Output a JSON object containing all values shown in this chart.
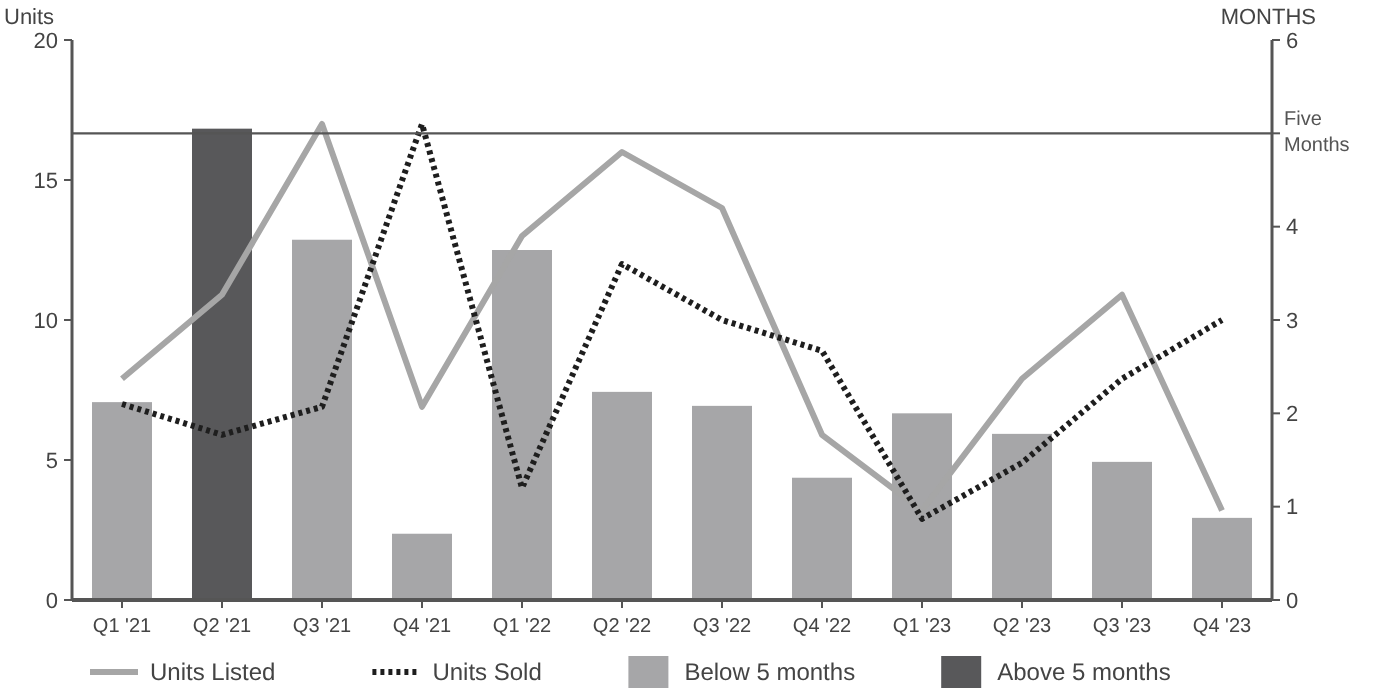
{
  "chart_data": {
    "type": "bar",
    "ylabel": "Units",
    "y2label": "MONTHS",
    "categories": [
      "Q1 '21",
      "Q2 '21",
      "Q3 '21",
      "Q4 '21",
      "Q1 '22",
      "Q2 '22",
      "Q3 '22",
      "Q4 '22",
      "Q1 '23",
      "Q2 '23",
      "Q3 '23",
      "Q4 '23"
    ],
    "series": [
      {
        "name": "Units Listed",
        "type": "line",
        "color": "#a6a6a6",
        "line_style": "solid",
        "values": [
          7.9,
          10.9,
          17.0,
          6.9,
          13.0,
          16.0,
          14.0,
          5.9,
          3.2,
          7.9,
          10.9,
          3.2
        ]
      },
      {
        "name": "Units Sold",
        "type": "line",
        "color": "#1e1e1e",
        "line_style": "dotted",
        "values": [
          7.0,
          5.9,
          6.9,
          17.0,
          4.0,
          12.0,
          10.0,
          8.9,
          2.9,
          4.9,
          7.9,
          10.0
        ]
      },
      {
        "name": "Below 5 months",
        "axis": "y2",
        "color": "#a6a6a8",
        "values": [
          2.12,
          null,
          3.86,
          0.71,
          3.75,
          2.23,
          2.08,
          1.31,
          2.0,
          1.78,
          1.48,
          0.88
        ]
      },
      {
        "name": "Above 5 months",
        "axis": "y2",
        "color": "#58585a",
        "values": [
          null,
          5.05,
          null,
          null,
          null,
          null,
          null,
          null,
          null,
          null,
          null,
          null
        ]
      }
    ],
    "ylim": [
      0,
      20
    ],
    "yticks": [
      0,
      5,
      10,
      15,
      20
    ],
    "y2lim": [
      0,
      6
    ],
    "y2ticks": [
      0,
      1,
      2,
      3,
      4,
      {
        "value": 5,
        "label": null
      },
      6
    ],
    "ref_lines": [
      {
        "axis": "y2",
        "value": 5,
        "label": "Five Months",
        "color": "#555555"
      }
    ],
    "grid": false,
    "legend": "bottom",
    "marker": "none"
  }
}
